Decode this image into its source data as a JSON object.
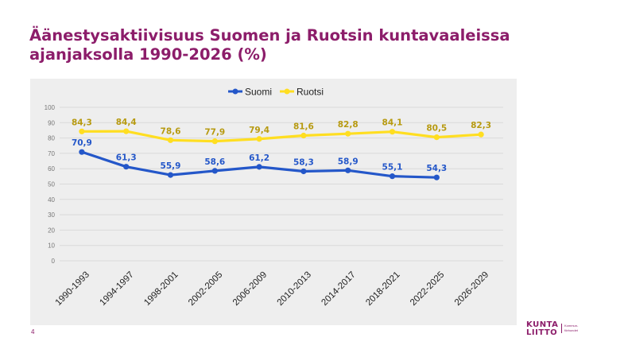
{
  "slide": {
    "title_line1": "Äänestysaktiivisuus Suomen ja Ruotsin kuntavaaleissa",
    "title_line2": "ajanjaksolla 1990-2026 (%)",
    "page_number": "4"
  },
  "logo": {
    "word_line1": "KUNTA",
    "word_line2": "LIITTO",
    "sub_line1": "Kommun-",
    "sub_line2": "förbundet"
  },
  "colors": {
    "title": "#8c1d6a",
    "suomi": "#2457c9",
    "ruotsi": "#ffde21",
    "suomi_label": "#2457c9",
    "ruotsi_label": "#b79a10",
    "panel": "#eeeeee",
    "grid": "#d9d9d9"
  },
  "chart_data": {
    "type": "line",
    "categories": [
      "1990-1993",
      "1994-1997",
      "1998-2001",
      "2002-2005",
      "2006-2009",
      "2010-2013",
      "2014-2017",
      "2018-2021",
      "2022-2025",
      "2026-2029"
    ],
    "series": [
      {
        "name": "Suomi",
        "values": [
          70.9,
          61.3,
          55.9,
          58.6,
          61.2,
          58.3,
          58.9,
          55.1,
          54.3,
          null
        ],
        "labels": [
          "70,9",
          "61,3",
          "55,9",
          "58,6",
          "61,2",
          "58,3",
          "58,9",
          "55,1",
          "54,3",
          ""
        ]
      },
      {
        "name": "Ruotsi",
        "values": [
          84.3,
          84.4,
          78.6,
          77.9,
          79.4,
          81.6,
          82.8,
          84.1,
          80.5,
          82.3
        ],
        "labels": [
          "84,3",
          "84,4",
          "78,6",
          "77,9",
          "79,4",
          "81,6",
          "82,8",
          "84,1",
          "80,5",
          "82,3"
        ]
      }
    ],
    "ylim": [
      0,
      100
    ],
    "yticks": [
      0,
      10,
      20,
      30,
      40,
      50,
      60,
      70,
      80,
      90,
      100
    ],
    "grid": true,
    "legend_position": "top-center"
  }
}
